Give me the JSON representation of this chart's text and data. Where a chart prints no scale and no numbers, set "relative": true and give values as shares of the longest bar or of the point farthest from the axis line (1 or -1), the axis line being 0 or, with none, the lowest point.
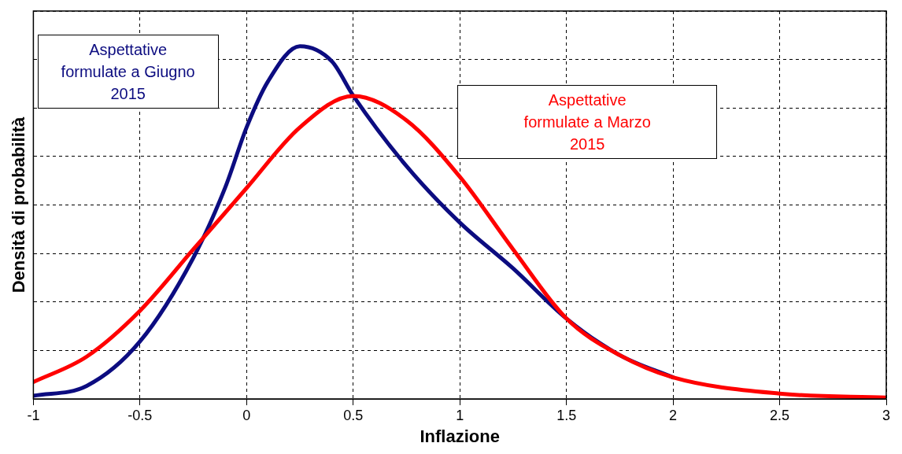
{
  "chart_data": {
    "type": "line",
    "relative": true,
    "xlabel": "Inflazione",
    "ylabel": "Densità di probabilità",
    "x": [
      -1,
      -0.75,
      -0.5,
      -0.25,
      -0.1,
      0,
      0.1,
      0.25,
      0.4,
      0.5,
      0.75,
      1,
      1.25,
      1.5,
      1.75,
      2
    ],
    "xlim": [
      -1,
      3
    ],
    "xticks": [
      -1,
      -0.5,
      0,
      0.5,
      1,
      1.5,
      2,
      2.5,
      3
    ],
    "grid": true,
    "line_style": "solid",
    "marker": "none",
    "series": [
      {
        "name": "Aspettative formulate a Giugno 2015",
        "color": "#0c0c80",
        "values": [
          0.009,
          0.037,
          0.163,
          0.4,
          0.6,
          0.77,
          0.9,
          1,
          0.957,
          0.86,
          0.66,
          0.5,
          0.37,
          0.228,
          0.124,
          0.061
        ]
      },
      {
        "name": "Aspettative formulate a Marzo 2015",
        "color": "#ff0000",
        "x": [
          -1,
          -0.75,
          -0.5,
          -0.25,
          0,
          0.25,
          0.5,
          0.75,
          1,
          1.25,
          1.5,
          1.75,
          2,
          2.5,
          3
        ],
        "values": [
          0.048,
          0.12,
          0.25,
          0.424,
          0.598,
          0.77,
          0.859,
          0.79,
          0.63,
          0.424,
          0.228,
          0.124,
          0.061,
          0.015,
          0.004
        ]
      }
    ]
  }
}
